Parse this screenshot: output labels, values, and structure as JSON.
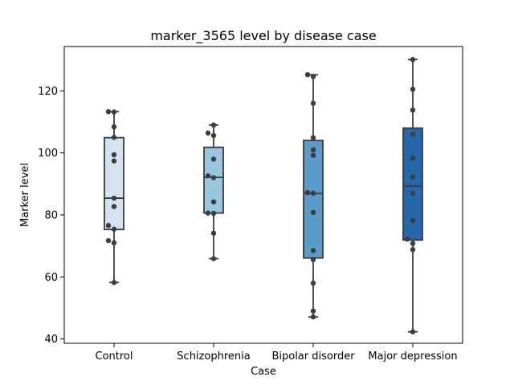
{
  "chart_data": {
    "type": "box",
    "title": "marker_3565 level by disease case",
    "xlabel": "Case",
    "ylabel": "Marker level",
    "ylim": [
      38.6,
      134.3
    ],
    "yticks": [
      40,
      60,
      80,
      100,
      120
    ],
    "grid": false,
    "categories": [
      "Control",
      "Schizophrenia",
      "Bipolar disorder",
      "Major depression"
    ],
    "colors": [
      "#d4e3f2",
      "#9ac7e0",
      "#5a9bc9",
      "#2666ab"
    ],
    "boxes": [
      {
        "name": "Control",
        "whisker_low": 58.2,
        "q1": 75.3,
        "median": 85.4,
        "q3": 104.9,
        "whisker_high": 113.3
      },
      {
        "name": "Schizophrenia",
        "whisker_low": 65.9,
        "q1": 80.6,
        "median": 92.1,
        "q3": 101.8,
        "whisker_high": 109.0
      },
      {
        "name": "Bipolar disorder",
        "whisker_low": 47.1,
        "q1": 66.1,
        "median": 86.9,
        "q3": 104.0,
        "whisker_high": 125.2
      },
      {
        "name": "Major depression",
        "whisker_low": 42.3,
        "q1": 71.9,
        "median": 89.3,
        "q3": 108.0,
        "whisker_high": 130.1
      }
    ],
    "points": [
      {
        "case": "Control",
        "values": [
          113.3,
          113.2,
          108.4,
          105.0,
          99.4,
          97.4,
          85.4,
          82.7,
          76.6,
          75.4,
          71.7,
          71.0,
          58.2
        ]
      },
      {
        "case": "Schizophrenia",
        "values": [
          109.0,
          106.4,
          105.6,
          98.0,
          92.6,
          92.0,
          84.2,
          80.6,
          80.5,
          74.1,
          65.9
        ]
      },
      {
        "case": "Bipolar disorder",
        "values": [
          125.2,
          124.6,
          116.0,
          104.9,
          101.0,
          99.2,
          87.2,
          87.0,
          80.8,
          68.5,
          65.6,
          58.0,
          49.0,
          47.1
        ]
      },
      {
        "case": "Major depression",
        "values": [
          130.1,
          120.5,
          113.8,
          106.0,
          98.3,
          92.2,
          87.0,
          78.2,
          72.2,
          70.8,
          68.8,
          42.3
        ]
      }
    ]
  }
}
